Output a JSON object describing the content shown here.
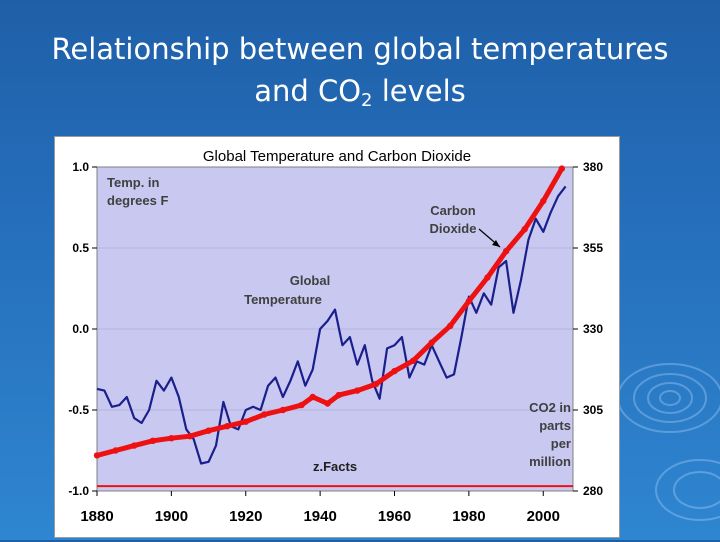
{
  "slide": {
    "title_line1": "Relationship between global temperatures",
    "title_line2_pre": "and CO",
    "title_line2_sub": "2",
    "title_line2_post": " levels"
  },
  "chart_data": {
    "type": "line",
    "title": "Global Temperature and Carbon Dioxide",
    "x_ticks": [
      "1880",
      "1900",
      "1920",
      "1940",
      "1960",
      "1980",
      "2000"
    ],
    "xlim": [
      1880,
      2008
    ],
    "y_left": {
      "ticks": [
        "1.0",
        "0.5",
        "0.0",
        "-0.5",
        "-1.0"
      ],
      "lim": [
        -1.0,
        1.0
      ]
    },
    "y_right": {
      "ticks": [
        "380",
        "355",
        "330",
        "305",
        "280"
      ],
      "lim": [
        280,
        380
      ]
    },
    "annotations": {
      "temp_unit": [
        "Temp. in",
        "degrees F"
      ],
      "co2_label": [
        "Carbon",
        "Dioxide"
      ],
      "temp_label": [
        "Global",
        "Temperature"
      ],
      "co2_unit": [
        "CO2 in",
        "parts",
        "per",
        "million"
      ],
      "source": "z.Facts"
    },
    "series": [
      {
        "name": "Global Temperature",
        "axis": "left",
        "color": "#1a1f8c",
        "x": [
          1880,
          1882,
          1884,
          1886,
          1888,
          1890,
          1892,
          1894,
          1896,
          1898,
          1900,
          1902,
          1904,
          1906,
          1908,
          1910,
          1912,
          1914,
          1916,
          1918,
          1920,
          1922,
          1924,
          1926,
          1928,
          1930,
          1932,
          1934,
          1936,
          1938,
          1940,
          1942,
          1944,
          1946,
          1948,
          1950,
          1952,
          1954,
          1956,
          1958,
          1960,
          1962,
          1964,
          1966,
          1968,
          1970,
          1972,
          1974,
          1976,
          1978,
          1980,
          1982,
          1984,
          1986,
          1988,
          1990,
          1992,
          1994,
          1996,
          1998,
          2000,
          2002,
          2004,
          2006
        ],
        "values": [
          -0.37,
          -0.38,
          -0.48,
          -0.47,
          -0.42,
          -0.55,
          -0.58,
          -0.5,
          -0.32,
          -0.38,
          -0.3,
          -0.42,
          -0.62,
          -0.68,
          -0.83,
          -0.82,
          -0.72,
          -0.45,
          -0.6,
          -0.62,
          -0.5,
          -0.48,
          -0.5,
          -0.35,
          -0.3,
          -0.42,
          -0.32,
          -0.2,
          -0.35,
          -0.25,
          0.0,
          0.05,
          0.12,
          -0.1,
          -0.05,
          -0.22,
          -0.1,
          -0.32,
          -0.43,
          -0.12,
          -0.1,
          -0.05,
          -0.3,
          -0.2,
          -0.22,
          -0.1,
          -0.2,
          -0.3,
          -0.28,
          -0.05,
          0.2,
          0.1,
          0.22,
          0.15,
          0.38,
          0.42,
          0.1,
          0.3,
          0.55,
          0.68,
          0.6,
          0.72,
          0.82,
          0.88
        ]
      },
      {
        "name": "Carbon Dioxide",
        "axis": "right",
        "color": "#ee1111",
        "x": [
          1880,
          1885,
          1890,
          1895,
          1900,
          1905,
          1910,
          1915,
          1920,
          1925,
          1930,
          1935,
          1938,
          1942,
          1945,
          1950,
          1955,
          1960,
          1965,
          1970,
          1975,
          1980,
          1985,
          1990,
          1995,
          2000,
          2005
        ],
        "values": [
          291,
          292.5,
          294,
          295.5,
          296.3,
          296.9,
          298.6,
          300,
          301.4,
          303.6,
          305,
          306.5,
          309,
          307,
          309.6,
          311,
          313,
          317,
          320.2,
          325.8,
          331,
          338.6,
          345.9,
          354,
          360.8,
          369.5,
          379.5
        ]
      }
    ],
    "baseline_value": -0.97
  }
}
